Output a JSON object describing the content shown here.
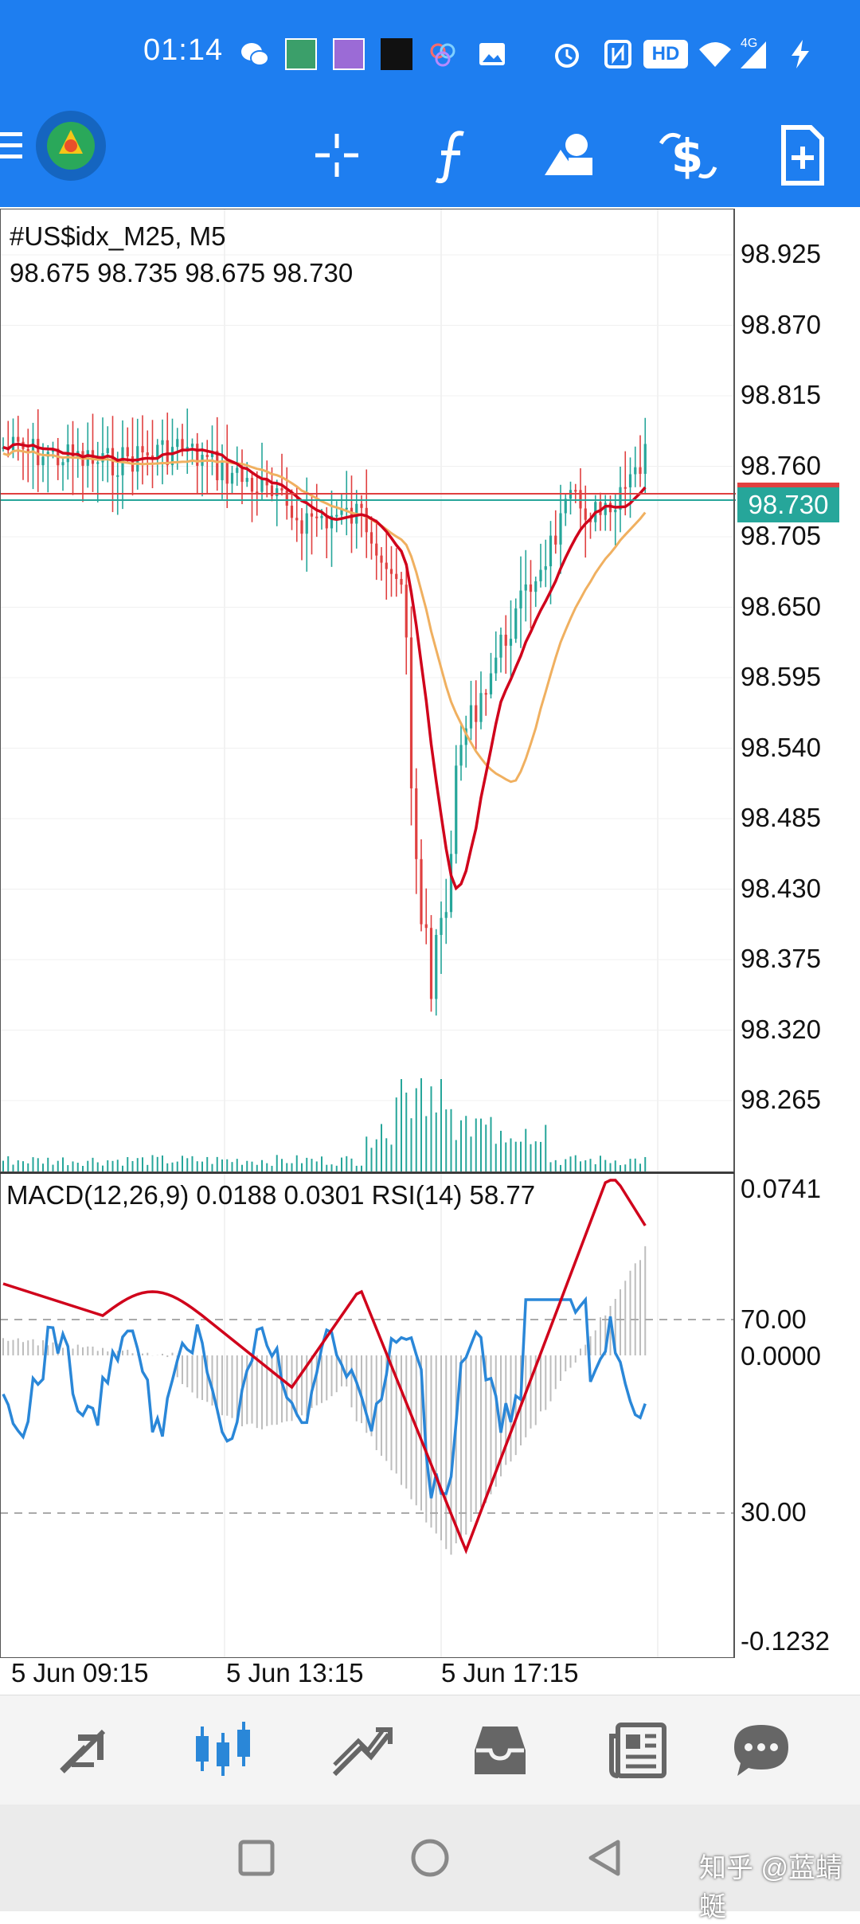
{
  "status_bar": {
    "time": "01:14",
    "network": "4G",
    "hd_badge": "HD",
    "icons": [
      "wechat-icon",
      "app-icon",
      "app-icon",
      "app-icon",
      "cloud-icon",
      "gallery-icon",
      "alarm-icon",
      "nfc-icon",
      "hd-icon",
      "wifi-icon",
      "signal-icon",
      "charging-icon"
    ]
  },
  "toolbar": {
    "icons": [
      "menu-icon",
      "metatrader-logo",
      "crosshair-icon",
      "function-icon",
      "objects-icon",
      "trade-icon",
      "new-order-icon"
    ]
  },
  "chart": {
    "symbol_line": "#US$idx_M25, M5",
    "ohlc_line": "98.675 98.735 98.675 98.730",
    "current_price": "98.730",
    "price_axis": [
      "98.925",
      "98.870",
      "98.815",
      "98.760",
      "98.705",
      "98.650",
      "98.595",
      "98.540",
      "98.485",
      "98.430",
      "98.375",
      "98.320",
      "98.265"
    ],
    "time_axis": [
      "5 Jun 09:15",
      "5 Jun 13:15",
      "5 Jun 17:15"
    ]
  },
  "subchart": {
    "indicator_line": "MACD(12,26,9) 0.0188 0.0301 RSI(14) 58.77",
    "axis_labels": [
      "0.0741",
      "70.00",
      "0.0000",
      "30.00",
      "-0.1232"
    ]
  },
  "colors": {
    "header_blue": "#1e7ef0",
    "bull_candle": "#26a69a",
    "bear_candle": "#e04040",
    "ma_fast": "#d0021b",
    "ma_slow": "#f0b060",
    "rsi": "#2a87d8",
    "macd_signal": "#d0021b",
    "histogram": "#bdbdbd"
  },
  "bottom_nav": {
    "items": [
      "quotes-icon",
      "chart-icon",
      "trade-icon",
      "history-icon",
      "news-icon",
      "messages-icon"
    ],
    "active": "chart-icon"
  },
  "system_nav": [
    "recents-button",
    "home-button",
    "back-button"
  ],
  "watermark": "知乎 @蓝蜻蜓"
}
